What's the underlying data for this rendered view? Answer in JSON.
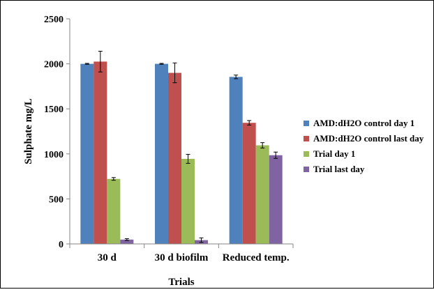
{
  "chart_data": {
    "type": "bar",
    "title": "",
    "xlabel": "Trials",
    "ylabel": "Sulphate mg/L",
    "ylim": [
      0,
      2500
    ],
    "yticks": [
      0,
      500,
      1000,
      1500,
      2000,
      2500
    ],
    "grid": false,
    "legend_position": "right",
    "categories": [
      "30 d",
      "30 d biofilm",
      "Reduced temp."
    ],
    "series": [
      {
        "name": "AMD:dH2O control day 1",
        "color": "#4F81BD",
        "values": [
          2000,
          2000,
          1855
        ],
        "errors": [
          5,
          5,
          20
        ]
      },
      {
        "name": "AMD:dH2O control last day",
        "color": "#C0504D",
        "values": [
          2025,
          1900,
          1345
        ],
        "errors": [
          115,
          110,
          25
        ]
      },
      {
        "name": "Trial day 1",
        "color": "#9BBB59",
        "values": [
          722,
          945,
          1095
        ],
        "errors": [
          15,
          50,
          30
        ]
      },
      {
        "name": "Trial last day",
        "color": "#8064A2",
        "values": [
          48,
          42,
          985
        ],
        "errors": [
          10,
          25,
          35
        ]
      }
    ]
  }
}
